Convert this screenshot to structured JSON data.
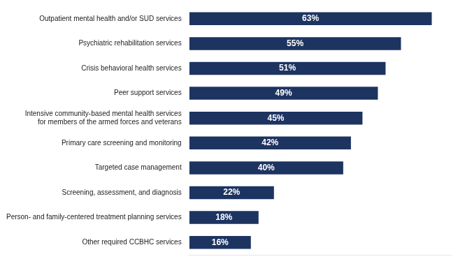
{
  "chart_data": {
    "type": "bar",
    "orientation": "horizontal",
    "categories": [
      "Other required CCBHC services",
      "Person- and family-centered treatment planning services",
      "Screening, assessment, and diagnosis",
      "Targeted case management",
      "Primary care screening and monitoring",
      "Intensive community-based mental health services\nfor members of the armed forces and veterans",
      "Peer support services",
      "Crisis behavioral health services",
      "Psychiatric rehabilitation services",
      "Outpatient mental health and/or SUD services"
    ],
    "values": [
      16,
      18,
      22,
      40,
      42,
      45,
      49,
      51,
      55,
      63
    ],
    "value_labels": [
      "16%",
      "18%",
      "22%",
      "40%",
      "42%",
      "45%",
      "49%",
      "51%",
      "55%",
      "63%"
    ],
    "color": "#1d3461",
    "xlim": [
      0,
      68
    ],
    "grid": false,
    "data_labels": true,
    "tick_labels": "y"
  }
}
